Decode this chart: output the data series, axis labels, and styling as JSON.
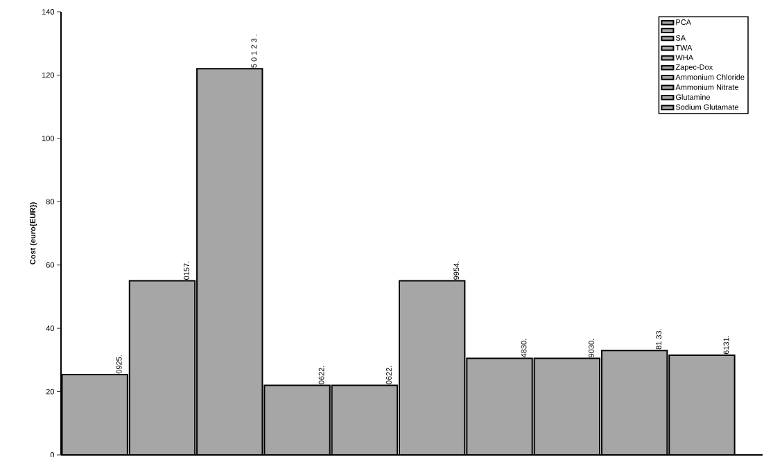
{
  "chart_data": {
    "type": "bar",
    "ylabel": "Cost (euro{EUR})",
    "categories": [
      null,
      null,
      null,
      null,
      null,
      null,
      null,
      null,
      null,
      null
    ],
    "series": [
      {
        "name": "PCA",
        "color": "#000000",
        "values": [
          25.4,
          null,
          null,
          null,
          null,
          null,
          null,
          null,
          null,
          null
        ]
      },
      {
        "color": "#000000",
        "values": [
          null,
          55,
          null,
          null,
          null,
          null,
          null,
          null,
          null,
          null
        ]
      },
      {
        "name": "SA",
        "color": "#000000",
        "values": [
          null,
          null,
          122,
          null,
          null,
          null,
          null,
          null,
          null,
          null
        ]
      },
      {
        "name": "TWA",
        "color": "#000000",
        "values": [
          null,
          null,
          null,
          22,
          null,
          null,
          null,
          null,
          null,
          null
        ]
      },
      {
        "name": "WHA",
        "color": "#000000",
        "values": [
          null,
          null,
          null,
          null,
          22,
          null,
          null,
          null,
          null,
          null
        ]
      },
      {
        "name": "Zapec-Dox",
        "color": "#000000",
        "values": [
          null,
          null,
          null,
          null,
          null,
          55,
          null,
          null,
          null,
          null
        ]
      },
      {
        "name": "Ammonium Chloride",
        "color": "#000000",
        "values": [
          null,
          null,
          null,
          null,
          null,
          null,
          30.5,
          null,
          null,
          null
        ]
      },
      {
        "name": "Ammonium Nitrate",
        "color": "#000000",
        "values": [
          null,
          null,
          null,
          null,
          null,
          null,
          null,
          30.5,
          null,
          null
        ]
      },
      {
        "name": "Glutamine",
        "color": "#000000",
        "values": [
          null,
          null,
          null,
          null,
          null,
          null,
          null,
          null,
          33,
          null
        ]
      },
      {
        "name": "Sodium Glutamate",
        "color": "#000000",
        "values": [
          null,
          null,
          null,
          null,
          null,
          null,
          null,
          null,
          null,
          31.5
        ]
      }
    ],
    "value_labels": [
      "0925.",
      "0157.",
      "5 0 1 2 3 .",
      "0622.",
      "0622.",
      "9954.",
      "4830.",
      "9030.",
      "81 33.",
      "6131."
    ],
    "ylim": [
      0,
      140
    ],
    "yticks": [
      0,
      20,
      40,
      60,
      80,
      100,
      120,
      140
    ],
    "legend": "top right"
  }
}
